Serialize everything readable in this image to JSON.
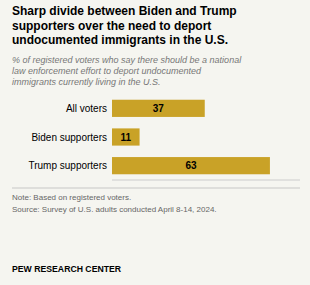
{
  "chart_data": {
    "type": "bar",
    "orientation": "horizontal",
    "title": "Sharp divide between Biden and Trump\nsupporters over the need to deport\nundocumented immigrants in the U.S.",
    "subtitle": "% of registered voters who say there should be a national\nlaw enforcement effort to deport undocumented\nimmigrants currently living in the U.S.",
    "categories": [
      "All voters",
      "Biden supporters",
      "Trump supporters"
    ],
    "values": [
      37,
      11,
      63
    ],
    "color": "#C9A227",
    "xlim": [
      0,
      75
    ],
    "data_labels": true,
    "tick_labels": "y",
    "grid": false,
    "annotations": [
      "Note: Based on registered voters.",
      "Source: Survey of U.S. adults conducted April 8-14, 2024.",
      "PEW RESEARCH CENTER"
    ]
  }
}
